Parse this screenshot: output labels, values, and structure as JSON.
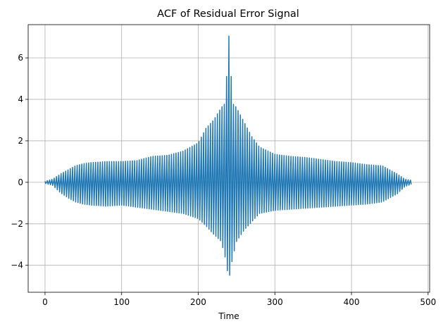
{
  "chart_data": {
    "type": "line",
    "title": "ACF of Residual Error Signal",
    "xlabel": "Time",
    "ylabel": "",
    "xlim": [
      -22,
      502
    ],
    "ylim": [
      -5.3,
      7.6
    ],
    "xticks": [
      0,
      100,
      200,
      300,
      400,
      500
    ],
    "yticks": [
      -4,
      -2,
      0,
      2,
      4,
      6
    ],
    "grid": true,
    "legend": "none",
    "series": [
      {
        "color": "#1f77b4",
        "oscillation_period": 3,
        "envelope_upper": {
          "x": [
            0,
            10,
            20,
            30,
            40,
            50,
            60,
            80,
            100,
            120,
            140,
            160,
            180,
            200,
            210,
            220,
            230,
            235,
            240,
            245,
            250,
            260,
            270,
            280,
            300,
            320,
            340,
            360,
            380,
            400,
            420,
            440,
            460,
            470,
            478
          ],
          "y": [
            0.05,
            0.15,
            0.4,
            0.6,
            0.8,
            0.9,
            0.95,
            1.0,
            1.0,
            1.05,
            1.25,
            1.3,
            1.5,
            1.9,
            2.6,
            3.0,
            3.6,
            3.8,
            7.05,
            3.8,
            3.6,
            2.9,
            2.2,
            1.7,
            1.35,
            1.25,
            1.2,
            1.1,
            1.0,
            0.95,
            0.85,
            0.8,
            0.4,
            0.15,
            0.1
          ]
        },
        "envelope_lower": {
          "x": [
            0,
            10,
            20,
            30,
            40,
            50,
            60,
            80,
            100,
            120,
            140,
            160,
            180,
            200,
            210,
            220,
            230,
            235,
            240,
            245,
            250,
            260,
            270,
            280,
            300,
            320,
            340,
            360,
            380,
            400,
            420,
            440,
            460,
            470,
            478
          ],
          "y": [
            -0.05,
            -0.15,
            -0.5,
            -0.75,
            -0.95,
            -1.05,
            -1.1,
            -1.15,
            -1.1,
            -1.2,
            -1.3,
            -1.4,
            -1.5,
            -1.75,
            -2.1,
            -2.5,
            -2.85,
            -3.6,
            -4.7,
            -3.6,
            -2.85,
            -2.3,
            -1.9,
            -1.5,
            -1.35,
            -1.3,
            -1.25,
            -1.2,
            -1.15,
            -1.1,
            -1.05,
            -0.95,
            -0.55,
            -0.2,
            -0.1
          ]
        }
      }
    ]
  }
}
